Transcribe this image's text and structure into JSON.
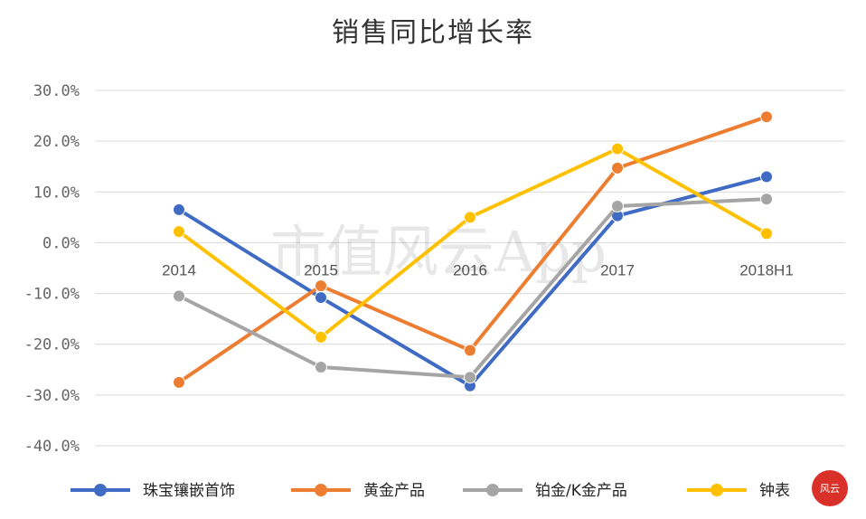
{
  "chart_data": {
    "type": "line",
    "title": "销售同比增长率",
    "categories": [
      "2014",
      "2015",
      "2016",
      "2017",
      "2018H1"
    ],
    "y_tick_labels": [
      "30.0%",
      "20.0%",
      "10.0%",
      "0.0%",
      "-10.0%",
      "-20.0%",
      "-30.0%",
      "-40.0%"
    ],
    "y_ticks": [
      30,
      20,
      10,
      0,
      -10,
      -20,
      -30,
      -40
    ],
    "ylim": [
      -40,
      30
    ],
    "unit": "%",
    "grid": true,
    "legend_position": "bottom",
    "series": [
      {
        "name": "珠宝镶嵌首饰",
        "color": "#3F6BC4",
        "values": [
          6.5,
          -10.8,
          -28.2,
          5.3,
          13.0
        ]
      },
      {
        "name": "黄金产品",
        "color": "#ED7D31",
        "values": [
          -27.5,
          -8.5,
          -21.2,
          14.7,
          24.8
        ]
      },
      {
        "name": "铂金/K金产品",
        "color": "#A5A5A5",
        "values": [
          -10.5,
          -24.5,
          -26.5,
          7.2,
          8.6
        ]
      },
      {
        "name": "钟表",
        "color": "#FFC000",
        "values": [
          2.2,
          -18.6,
          5.0,
          18.5,
          1.8
        ]
      }
    ]
  },
  "watermark": "市值风云App",
  "logo": {
    "text": "风云",
    "color": "#D9302A"
  }
}
